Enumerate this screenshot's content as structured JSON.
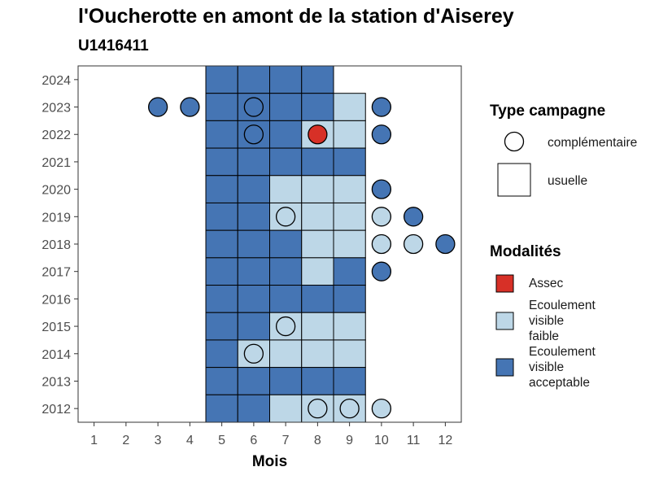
{
  "title": "l'Oucherotte en amont de la station d'Aiserey",
  "subtitle": "U1416411",
  "chart_data": {
    "type": "heatmap",
    "xlabel": "Mois",
    "ylabel": "",
    "x_ticks": [
      "1",
      "2",
      "3",
      "4",
      "5",
      "6",
      "7",
      "8",
      "9",
      "10",
      "11",
      "12"
    ],
    "y_ticks": [
      "2024",
      "2023",
      "2022",
      "2021",
      "2020",
      "2019",
      "2018",
      "2017",
      "2016",
      "2015",
      "2014",
      "2013",
      "2012"
    ],
    "xlim": [
      0.5,
      12.5
    ],
    "ylim": [
      2011.5,
      2024.5
    ],
    "grid": false,
    "colors": {
      "Assec": "#d73027",
      "Ecoulement visible faible": "#bdd7e7",
      "Ecoulement visible acceptable": "#4575b4"
    },
    "legend_campaign": {
      "title": "Type campagne",
      "entries": [
        {
          "shape": "circle",
          "label": "complémentaire"
        },
        {
          "shape": "square",
          "label": "usuelle"
        }
      ]
    },
    "legend_modalites": {
      "title": "Modalités",
      "entries": [
        {
          "key": "Assec",
          "lines": [
            "Assec"
          ]
        },
        {
          "key": "Ecoulement visible faible",
          "lines": [
            "Ecoulement",
            "visible",
            "faible"
          ]
        },
        {
          "key": "Ecoulement visible acceptable",
          "lines": [
            "Ecoulement",
            "visible",
            "acceptable"
          ]
        }
      ]
    },
    "usuelle": [
      {
        "year": 2024,
        "months": [
          "A",
          "A",
          "A",
          "A"
        ]
      },
      {
        "year": 2023,
        "months": [
          "A",
          "A",
          "A",
          "A",
          "F"
        ]
      },
      {
        "year": 2022,
        "months": [
          "A",
          "A",
          "A",
          "F",
          "F"
        ]
      },
      {
        "year": 2021,
        "months": [
          "A",
          "A",
          "A",
          "A",
          "A"
        ]
      },
      {
        "year": 2020,
        "months": [
          "A",
          "A",
          "F",
          "F",
          "F"
        ]
      },
      {
        "year": 2019,
        "months": [
          "A",
          "A",
          "F",
          "F",
          "F"
        ]
      },
      {
        "year": 2018,
        "months": [
          "A",
          "A",
          "A",
          "F",
          "F"
        ]
      },
      {
        "year": 2017,
        "months": [
          "A",
          "A",
          "A",
          "F",
          "A"
        ]
      },
      {
        "year": 2016,
        "months": [
          "A",
          "A",
          "A",
          "A",
          "A"
        ]
      },
      {
        "year": 2015,
        "months": [
          "A",
          "A",
          "F",
          "F",
          "F"
        ]
      },
      {
        "year": 2014,
        "months": [
          "A",
          "F",
          "F",
          "F",
          "F"
        ]
      },
      {
        "year": 2013,
        "months": [
          "A",
          "A",
          "A",
          "A",
          "A"
        ]
      },
      {
        "year": 2012,
        "months": [
          "A",
          "A",
          "F",
          "F",
          "F"
        ]
      }
    ],
    "usuelle_start_month": 5,
    "complementaire": [
      {
        "year": 2023,
        "month": 3,
        "value": "A"
      },
      {
        "year": 2023,
        "month": 4,
        "value": "A"
      },
      {
        "year": 2023,
        "month": 6,
        "value": "A"
      },
      {
        "year": 2023,
        "month": 10,
        "value": "A"
      },
      {
        "year": 2022,
        "month": 6,
        "value": "A"
      },
      {
        "year": 2022,
        "month": 8,
        "value": "S"
      },
      {
        "year": 2022,
        "month": 10,
        "value": "A"
      },
      {
        "year": 2020,
        "month": 10,
        "value": "A"
      },
      {
        "year": 2019,
        "month": 7,
        "value": "F"
      },
      {
        "year": 2019,
        "month": 10,
        "value": "F"
      },
      {
        "year": 2019,
        "month": 11,
        "value": "A"
      },
      {
        "year": 2018,
        "month": 10,
        "value": "F"
      },
      {
        "year": 2018,
        "month": 11,
        "value": "F"
      },
      {
        "year": 2018,
        "month": 12,
        "value": "A"
      },
      {
        "year": 2017,
        "month": 10,
        "value": "A"
      },
      {
        "year": 2015,
        "month": 7,
        "value": "F"
      },
      {
        "year": 2014,
        "month": 6,
        "value": "F"
      },
      {
        "year": 2012,
        "month": 8,
        "value": "F"
      },
      {
        "year": 2012,
        "month": 9,
        "value": "F"
      },
      {
        "year": 2012,
        "month": 10,
        "value": "F"
      }
    ],
    "value_codes": {
      "A": "Ecoulement visible acceptable",
      "F": "Ecoulement visible faible",
      "S": "Assec"
    }
  }
}
